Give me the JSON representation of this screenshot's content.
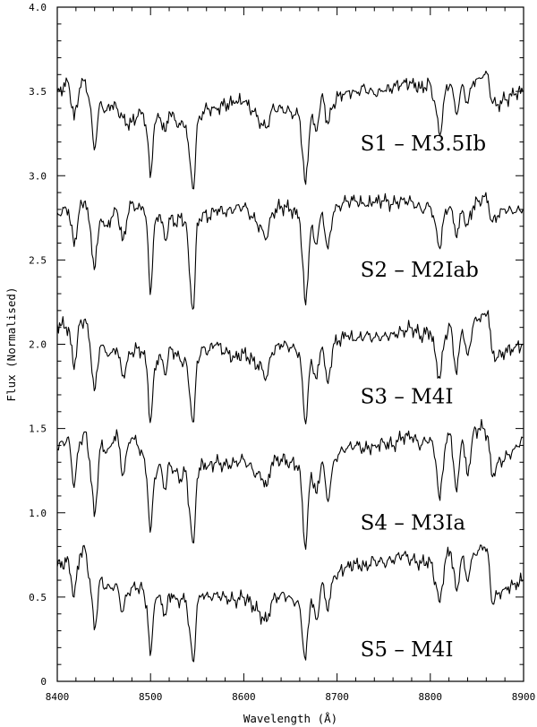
{
  "chart_data": {
    "type": "line",
    "title": "",
    "xlabel": "Wavelength (Å)",
    "ylabel": "Flux (Normalised)",
    "xlim": [
      8400,
      8900
    ],
    "ylim": [
      0,
      4.0
    ],
    "x_ticks": [
      8400,
      8500,
      8600,
      8700,
      8800,
      8900
    ],
    "y_ticks": [
      0,
      0.5,
      1.0,
      1.5,
      2.0,
      2.5,
      3.0,
      3.5,
      4.0
    ],
    "y_tick_labels": [
      "0",
      "0.5",
      "1.0",
      "1.5",
      "2.0",
      "2.5",
      "3.0",
      "3.5",
      "4.0"
    ],
    "grid": false,
    "series": [
      {
        "name": "S1 – M3.5Ib",
        "x": [
          8400,
          8412,
          8418,
          8424,
          8430,
          8435,
          8440,
          8446,
          8452,
          8458,
          8464,
          8470,
          8475,
          8480,
          8486,
          8492,
          8496,
          8500,
          8504,
          8510,
          8516,
          8520,
          8526,
          8532,
          8538,
          8542,
          8546,
          8550,
          8556,
          8562,
          8570,
          8580,
          8590,
          8600,
          8610,
          8620,
          8625,
          8630,
          8640,
          8650,
          8660,
          8666,
          8672,
          8678,
          8684,
          8690,
          8696,
          8702,
          8710,
          8720,
          8730,
          8740,
          8750,
          8760,
          8770,
          8780,
          8790,
          8800,
          8806,
          8810,
          8816,
          8822,
          8828,
          8834,
          8840,
          8846,
          8852,
          8858,
          8862,
          8866,
          8872,
          8880,
          8890,
          8900
        ],
        "y": [
          3.5,
          3.55,
          3.33,
          3.52,
          3.57,
          3.42,
          3.13,
          3.45,
          3.38,
          3.42,
          3.4,
          3.35,
          3.3,
          3.32,
          3.35,
          3.38,
          3.25,
          2.96,
          3.3,
          3.35,
          3.25,
          3.38,
          3.33,
          3.3,
          3.3,
          3.1,
          2.88,
          3.3,
          3.38,
          3.4,
          3.4,
          3.42,
          3.43,
          3.44,
          3.38,
          3.3,
          3.28,
          3.4,
          3.4,
          3.38,
          3.35,
          2.92,
          3.35,
          3.25,
          3.5,
          3.3,
          3.42,
          3.48,
          3.5,
          3.5,
          3.52,
          3.48,
          3.5,
          3.52,
          3.55,
          3.55,
          3.52,
          3.55,
          3.4,
          3.22,
          3.5,
          3.55,
          3.35,
          3.55,
          3.42,
          3.56,
          3.58,
          3.6,
          3.6,
          3.43,
          3.42,
          3.45,
          3.48,
          3.5
        ]
      },
      {
        "name": "S2 – M2Iab",
        "x": [
          8400,
          8412,
          8418,
          8424,
          8430,
          8435,
          8440,
          8446,
          8452,
          8458,
          8464,
          8470,
          8475,
          8480,
          8486,
          8492,
          8496,
          8500,
          8504,
          8510,
          8516,
          8520,
          8526,
          8532,
          8538,
          8542,
          8546,
          8550,
          8556,
          8562,
          8570,
          8580,
          8590,
          8600,
          8610,
          8620,
          8625,
          8630,
          8640,
          8650,
          8660,
          8666,
          8672,
          8678,
          8684,
          8690,
          8696,
          8702,
          8710,
          8720,
          8730,
          8740,
          8750,
          8760,
          8770,
          8780,
          8790,
          8800,
          8806,
          8810,
          8816,
          8822,
          8828,
          8834,
          8840,
          8846,
          8852,
          8858,
          8862,
          8866,
          8872,
          8880,
          8890,
          8900
        ],
        "y": [
          2.78,
          2.8,
          2.58,
          2.8,
          2.85,
          2.7,
          2.42,
          2.75,
          2.7,
          2.75,
          2.8,
          2.6,
          2.75,
          2.85,
          2.8,
          2.82,
          2.7,
          2.25,
          2.7,
          2.78,
          2.6,
          2.75,
          2.72,
          2.75,
          2.72,
          2.4,
          2.16,
          2.72,
          2.78,
          2.75,
          2.8,
          2.78,
          2.8,
          2.82,
          2.75,
          2.68,
          2.62,
          2.78,
          2.82,
          2.8,
          2.75,
          2.2,
          2.7,
          2.58,
          2.8,
          2.55,
          2.78,
          2.82,
          2.85,
          2.85,
          2.82,
          2.84,
          2.85,
          2.83,
          2.86,
          2.85,
          2.8,
          2.82,
          2.7,
          2.55,
          2.8,
          2.82,
          2.62,
          2.8,
          2.7,
          2.82,
          2.85,
          2.88,
          2.85,
          2.72,
          2.76,
          2.8,
          2.78,
          2.8
        ]
      },
      {
        "name": "S3 – M4I",
        "x": [
          8400,
          8412,
          8418,
          8424,
          8430,
          8435,
          8440,
          8446,
          8452,
          8458,
          8464,
          8470,
          8475,
          8480,
          8486,
          8492,
          8496,
          8500,
          8504,
          8510,
          8516,
          8520,
          8526,
          8532,
          8538,
          8542,
          8546,
          8550,
          8556,
          8562,
          8570,
          8580,
          8590,
          8600,
          8610,
          8620,
          8625,
          8630,
          8640,
          8650,
          8660,
          8666,
          8672,
          8678,
          8684,
          8690,
          8696,
          8702,
          8710,
          8720,
          8730,
          8740,
          8750,
          8760,
          8770,
          8780,
          8790,
          8800,
          8806,
          8810,
          8816,
          8822,
          8828,
          8834,
          8840,
          8846,
          8852,
          8858,
          8862,
          8866,
          8872,
          8880,
          8890,
          8900
        ],
        "y": [
          2.12,
          2.1,
          1.85,
          2.12,
          2.15,
          2.0,
          1.7,
          2.0,
          1.95,
          1.95,
          1.98,
          1.8,
          1.9,
          1.95,
          1.98,
          1.95,
          1.85,
          1.5,
          1.85,
          1.95,
          1.8,
          1.98,
          1.95,
          1.9,
          1.9,
          1.7,
          1.5,
          1.9,
          1.98,
          1.96,
          2.0,
          1.95,
          1.92,
          1.95,
          1.9,
          1.85,
          1.8,
          1.95,
          2.0,
          1.98,
          1.95,
          1.5,
          1.92,
          1.78,
          2.0,
          1.75,
          2.0,
          2.02,
          2.05,
          2.02,
          2.05,
          2.04,
          2.05,
          2.06,
          2.08,
          2.1,
          2.05,
          2.08,
          1.92,
          1.78,
          2.05,
          2.12,
          1.8,
          2.1,
          1.92,
          2.12,
          2.15,
          2.18,
          2.2,
          1.95,
          1.92,
          1.95,
          1.98,
          2.0
        ]
      },
      {
        "name": "S4 – M3Ia",
        "x": [
          8400,
          8412,
          8418,
          8424,
          8430,
          8435,
          8440,
          8446,
          8452,
          8458,
          8464,
          8470,
          8475,
          8480,
          8486,
          8492,
          8496,
          8500,
          8504,
          8510,
          8516,
          8520,
          8526,
          8532,
          8538,
          8542,
          8546,
          8550,
          8556,
          8562,
          8570,
          8580,
          8590,
          8600,
          8610,
          8620,
          8625,
          8630,
          8640,
          8650,
          8660,
          8666,
          8672,
          8678,
          8684,
          8690,
          8696,
          8702,
          8710,
          8720,
          8730,
          8740,
          8750,
          8760,
          8770,
          8780,
          8790,
          8800,
          8806,
          8810,
          8816,
          8822,
          8828,
          8834,
          8840,
          8846,
          8852,
          8858,
          8862,
          8866,
          8872,
          8880,
          8890,
          8900
        ],
        "y": [
          1.38,
          1.45,
          1.15,
          1.42,
          1.48,
          1.3,
          0.95,
          1.4,
          1.35,
          1.4,
          1.5,
          1.2,
          1.38,
          1.45,
          1.4,
          1.35,
          1.2,
          0.85,
          1.2,
          1.3,
          1.12,
          1.3,
          1.25,
          1.2,
          1.25,
          1.0,
          0.78,
          1.2,
          1.3,
          1.28,
          1.3,
          1.28,
          1.3,
          1.32,
          1.25,
          1.2,
          1.15,
          1.3,
          1.32,
          1.3,
          1.28,
          0.75,
          1.25,
          1.1,
          1.32,
          1.05,
          1.3,
          1.35,
          1.38,
          1.4,
          1.38,
          1.4,
          1.42,
          1.4,
          1.45,
          1.45,
          1.4,
          1.45,
          1.3,
          1.05,
          1.4,
          1.48,
          1.1,
          1.45,
          1.2,
          1.48,
          1.5,
          1.5,
          1.45,
          1.2,
          1.3,
          1.32,
          1.38,
          1.45
        ]
      },
      {
        "name": "S5 – M4I",
        "x": [
          8400,
          8412,
          8418,
          8424,
          8430,
          8435,
          8440,
          8446,
          8452,
          8458,
          8464,
          8470,
          8475,
          8480,
          8486,
          8492,
          8496,
          8500,
          8504,
          8510,
          8516,
          8520,
          8526,
          8532,
          8538,
          8542,
          8546,
          8550,
          8556,
          8562,
          8570,
          8580,
          8590,
          8600,
          8610,
          8620,
          8625,
          8630,
          8640,
          8650,
          8660,
          8666,
          8672,
          8678,
          8684,
          8690,
          8696,
          8702,
          8710,
          8720,
          8730,
          8740,
          8750,
          8760,
          8770,
          8780,
          8790,
          8800,
          8806,
          8810,
          8816,
          8822,
          8828,
          8834,
          8840,
          8846,
          8852,
          8858,
          8862,
          8866,
          8872,
          8880,
          8890,
          8900
        ],
        "y": [
          0.68,
          0.72,
          0.5,
          0.75,
          0.78,
          0.6,
          0.28,
          0.62,
          0.55,
          0.55,
          0.58,
          0.4,
          0.52,
          0.56,
          0.55,
          0.55,
          0.45,
          0.12,
          0.45,
          0.52,
          0.38,
          0.52,
          0.5,
          0.48,
          0.48,
          0.3,
          0.08,
          0.45,
          0.52,
          0.5,
          0.52,
          0.5,
          0.48,
          0.5,
          0.45,
          0.38,
          0.35,
          0.48,
          0.52,
          0.5,
          0.45,
          0.1,
          0.5,
          0.35,
          0.6,
          0.4,
          0.62,
          0.65,
          0.68,
          0.7,
          0.68,
          0.72,
          0.7,
          0.72,
          0.75,
          0.72,
          0.7,
          0.72,
          0.58,
          0.45,
          0.72,
          0.78,
          0.52,
          0.75,
          0.58,
          0.76,
          0.78,
          0.8,
          0.75,
          0.45,
          0.52,
          0.55,
          0.58,
          0.6
        ]
      }
    ]
  }
}
